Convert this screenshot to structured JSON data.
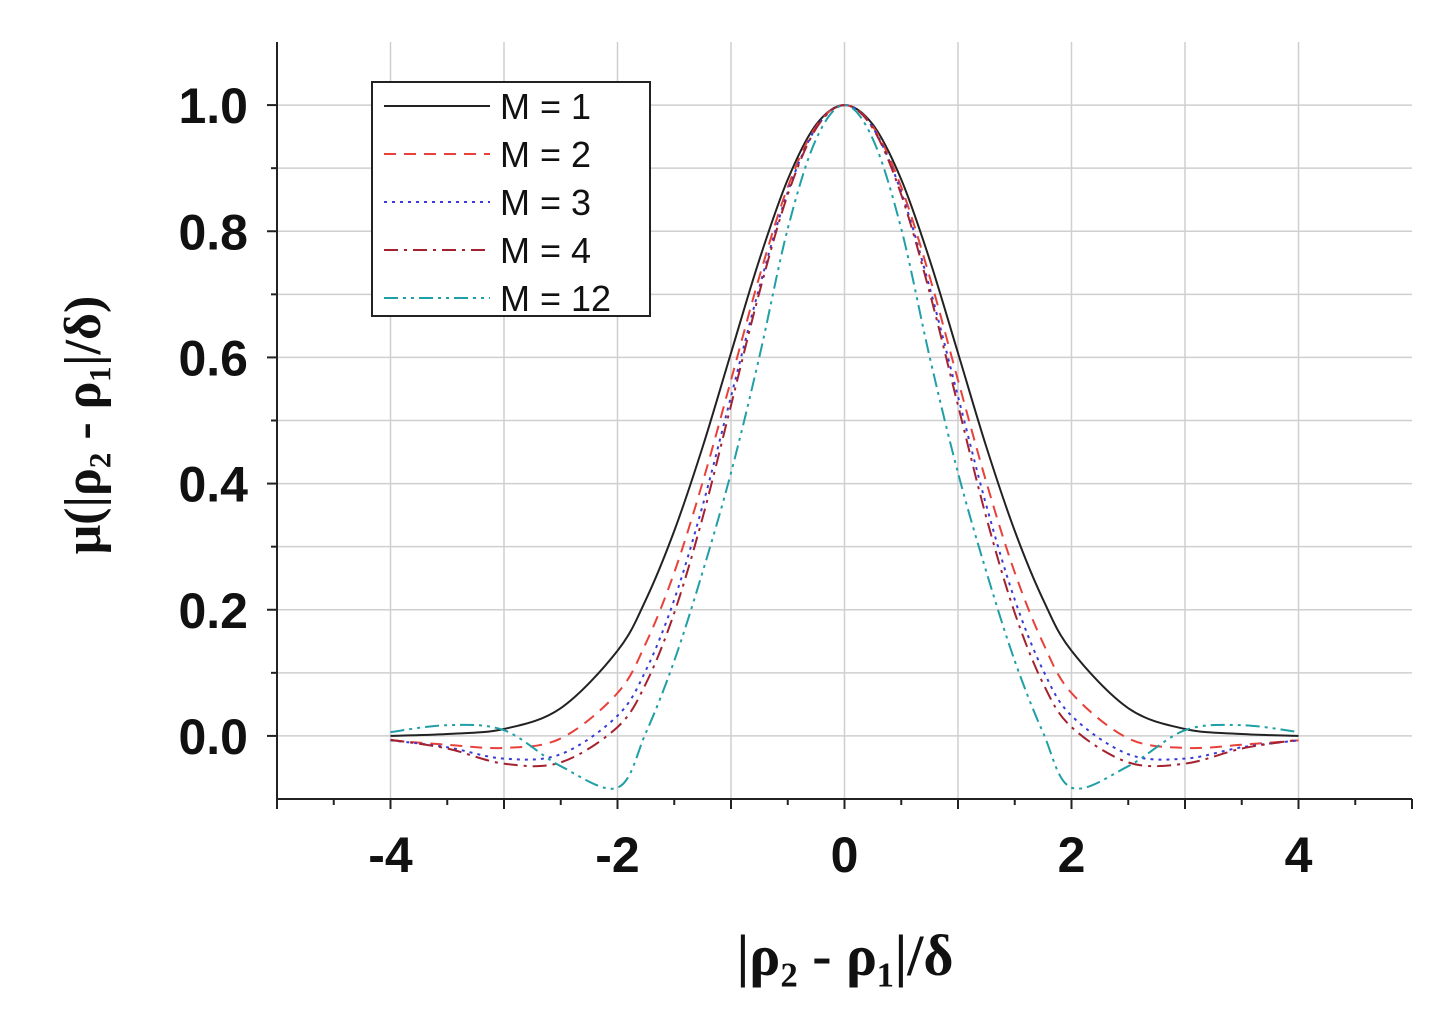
{
  "chart_data": {
    "type": "line",
    "title": "",
    "xlabel": "|ρ₂ - ρ₁|/δ",
    "ylabel": "μ(|ρ₂ - ρ₁|/δ)",
    "xlim": [
      -5,
      5
    ],
    "ylim": [
      -0.1,
      1.1
    ],
    "x_ticks": [
      "-4",
      "-2",
      "0",
      "2",
      "4"
    ],
    "y_ticks": [
      "0.0",
      "0.2",
      "0.4",
      "0.6",
      "0.8",
      "1.0"
    ],
    "grid": true,
    "legend_position": "top-left",
    "x": [
      -4.0,
      -3.5,
      -3.0,
      -2.5,
      -2.0,
      -1.75,
      -1.5,
      -1.25,
      -1.0,
      -0.75,
      -0.5,
      -0.25,
      0.0,
      0.25,
      0.5,
      0.75,
      1.0,
      1.25,
      1.5,
      1.75,
      2.0,
      2.5,
      3.0,
      3.5,
      4.0
    ],
    "series": [
      {
        "name": "M = 1",
        "color": "#222222",
        "dash": "solid",
        "values": [
          0.0,
          0.003,
          0.011,
          0.044,
          0.135,
          0.216,
          0.325,
          0.458,
          0.607,
          0.755,
          0.882,
          0.969,
          1.0,
          0.969,
          0.882,
          0.755,
          0.607,
          0.458,
          0.325,
          0.216,
          0.135,
          0.044,
          0.011,
          0.003,
          0.0
        ]
      },
      {
        "name": "M = 2",
        "color": "#e8413a",
        "dash": "dashed",
        "values": [
          -0.007,
          -0.014,
          -0.019,
          -0.004,
          0.068,
          0.147,
          0.259,
          0.402,
          0.564,
          0.728,
          0.87,
          0.966,
          1.0,
          0.966,
          0.87,
          0.728,
          0.564,
          0.402,
          0.259,
          0.147,
          0.068,
          -0.004,
          -0.019,
          -0.014,
          -0.007
        ]
      },
      {
        "name": "M = 3",
        "color": "#3a3ad8",
        "dash": "dotted",
        "values": [
          -0.007,
          -0.018,
          -0.036,
          -0.029,
          0.032,
          0.104,
          0.216,
          0.365,
          0.538,
          0.711,
          0.862,
          0.964,
          1.0,
          0.964,
          0.862,
          0.711,
          0.538,
          0.365,
          0.216,
          0.104,
          0.032,
          -0.029,
          -0.036,
          -0.018,
          -0.007
        ]
      },
      {
        "name": "M = 4",
        "color": "#a4222f",
        "dash": "dashdot",
        "values": [
          -0.006,
          -0.02,
          -0.044,
          -0.042,
          0.014,
          0.083,
          0.195,
          0.346,
          0.524,
          0.703,
          0.858,
          0.963,
          1.0,
          0.963,
          0.858,
          0.703,
          0.524,
          0.346,
          0.195,
          0.083,
          0.014,
          -0.042,
          -0.044,
          -0.02,
          -0.006
        ]
      },
      {
        "name": "M = 12",
        "color": "#1f9fa6",
        "dash": "dashdotdot",
        "values": [
          0.006,
          0.017,
          0.009,
          -0.048,
          -0.082,
          0.005,
          0.119,
          0.26,
          0.417,
          0.601,
          0.804,
          0.946,
          1.0,
          0.946,
          0.804,
          0.601,
          0.417,
          0.26,
          0.119,
          0.005,
          -0.082,
          -0.048,
          0.009,
          0.017,
          0.006
        ]
      }
    ]
  }
}
